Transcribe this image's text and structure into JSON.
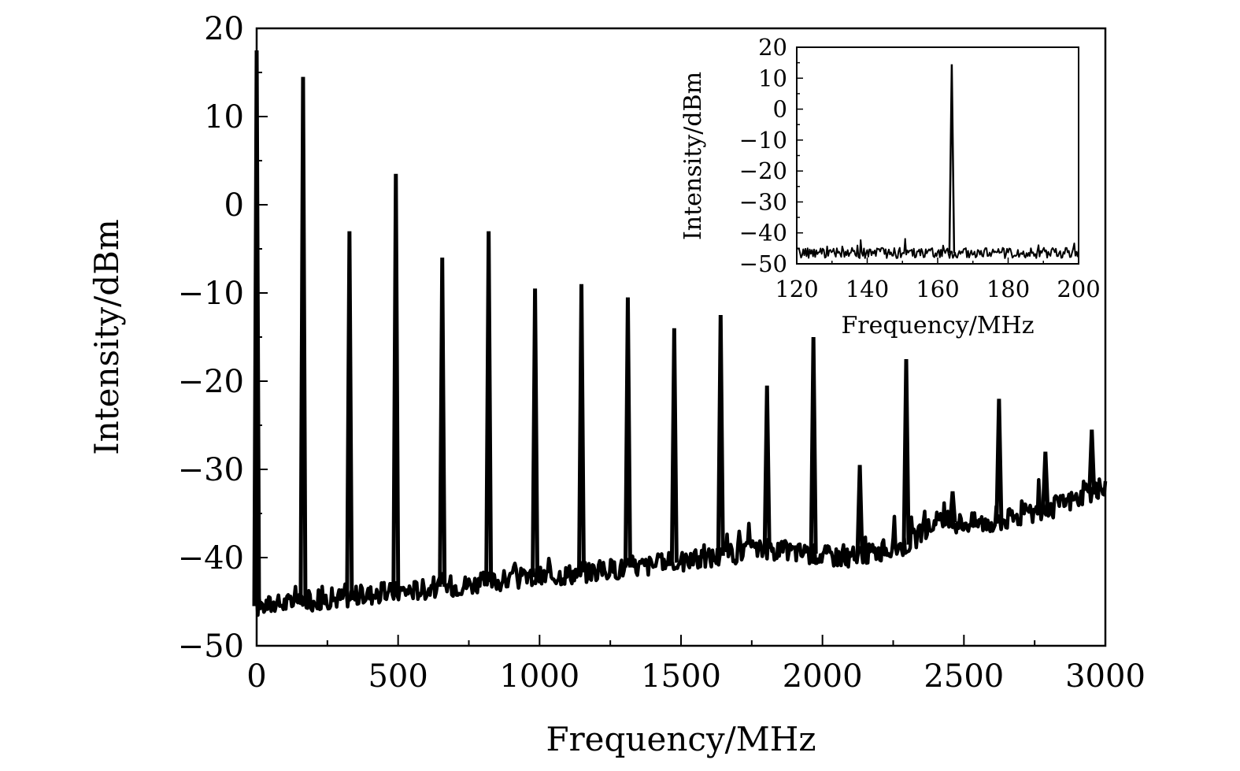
{
  "chart_data": [
    {
      "type": "line",
      "xlabel": "Frequency/MHz",
      "ylabel": "Intensity/dBm",
      "xlim": [
        0,
        3000
      ],
      "ylim": [
        -50,
        20
      ],
      "xticks": [
        0,
        500,
        1000,
        1500,
        2000,
        2500,
        3000
      ],
      "yticks": [
        20,
        10,
        0,
        -10,
        -20,
        -30,
        -40,
        -50
      ],
      "xtick_labels": [
        "0",
        "500",
        "1000",
        "1500",
        "2000",
        "2500",
        "3000"
      ],
      "ytick_labels": [
        "20",
        "10",
        "0",
        "−10",
        "−20",
        "−30",
        "−40",
        "−50"
      ],
      "grid": false,
      "line_color": "#000000",
      "noise_floor": [
        [
          0,
          -45.5
        ],
        [
          300,
          -44.5
        ],
        [
          600,
          -43.5
        ],
        [
          900,
          -42.5
        ],
        [
          1200,
          -41.5
        ],
        [
          1500,
          -40.5
        ],
        [
          1800,
          -39.0
        ],
        [
          2100,
          -40.0
        ],
        [
          2300,
          -38.5
        ],
        [
          2400,
          -36.0
        ],
        [
          2600,
          -36.0
        ],
        [
          2800,
          -34.5
        ],
        [
          3000,
          -32.0
        ]
      ],
      "peaks": [
        {
          "f": 0,
          "dbm": 17.5
        },
        {
          "f": 164,
          "dbm": 14.5
        },
        {
          "f": 328,
          "dbm": -3.0
        },
        {
          "f": 492,
          "dbm": 3.5
        },
        {
          "f": 656,
          "dbm": -6.0
        },
        {
          "f": 820,
          "dbm": -3.0
        },
        {
          "f": 984,
          "dbm": -9.5
        },
        {
          "f": 1148,
          "dbm": -9.0
        },
        {
          "f": 1312,
          "dbm": -10.5
        },
        {
          "f": 1476,
          "dbm": -14.0
        },
        {
          "f": 1640,
          "dbm": -12.5
        },
        {
          "f": 1804,
          "dbm": -20.5
        },
        {
          "f": 1968,
          "dbm": -15.0
        },
        {
          "f": 2132,
          "dbm": -29.5
        },
        {
          "f": 2296,
          "dbm": -17.5
        },
        {
          "f": 2460,
          "dbm": -32.5
        },
        {
          "f": 2624,
          "dbm": -22.0
        },
        {
          "f": 2788,
          "dbm": -28.0
        },
        {
          "f": 2952,
          "dbm": -25.5
        }
      ]
    },
    {
      "type": "line",
      "inset": true,
      "xlabel": "Frequency/MHz",
      "ylabel": "Intensity/dBm",
      "xlim": [
        120,
        200
      ],
      "ylim": [
        -50,
        20
      ],
      "xticks": [
        120,
        140,
        160,
        180,
        200
      ],
      "yticks": [
        20,
        10,
        0,
        -10,
        -20,
        -30,
        -40,
        -50
      ],
      "xtick_labels": [
        "120",
        "140",
        "160",
        "180",
        "200"
      ],
      "ytick_labels": [
        "20",
        "10",
        "0",
        "−10",
        "−20",
        "−30",
        "−40",
        "−50"
      ],
      "grid": false,
      "line_color": "#000000",
      "noise_floor": [
        [
          120,
          -46.5
        ],
        [
          200,
          -46.5
        ]
      ],
      "peaks": [
        {
          "f": 164,
          "dbm": 14.5
        }
      ]
    }
  ]
}
